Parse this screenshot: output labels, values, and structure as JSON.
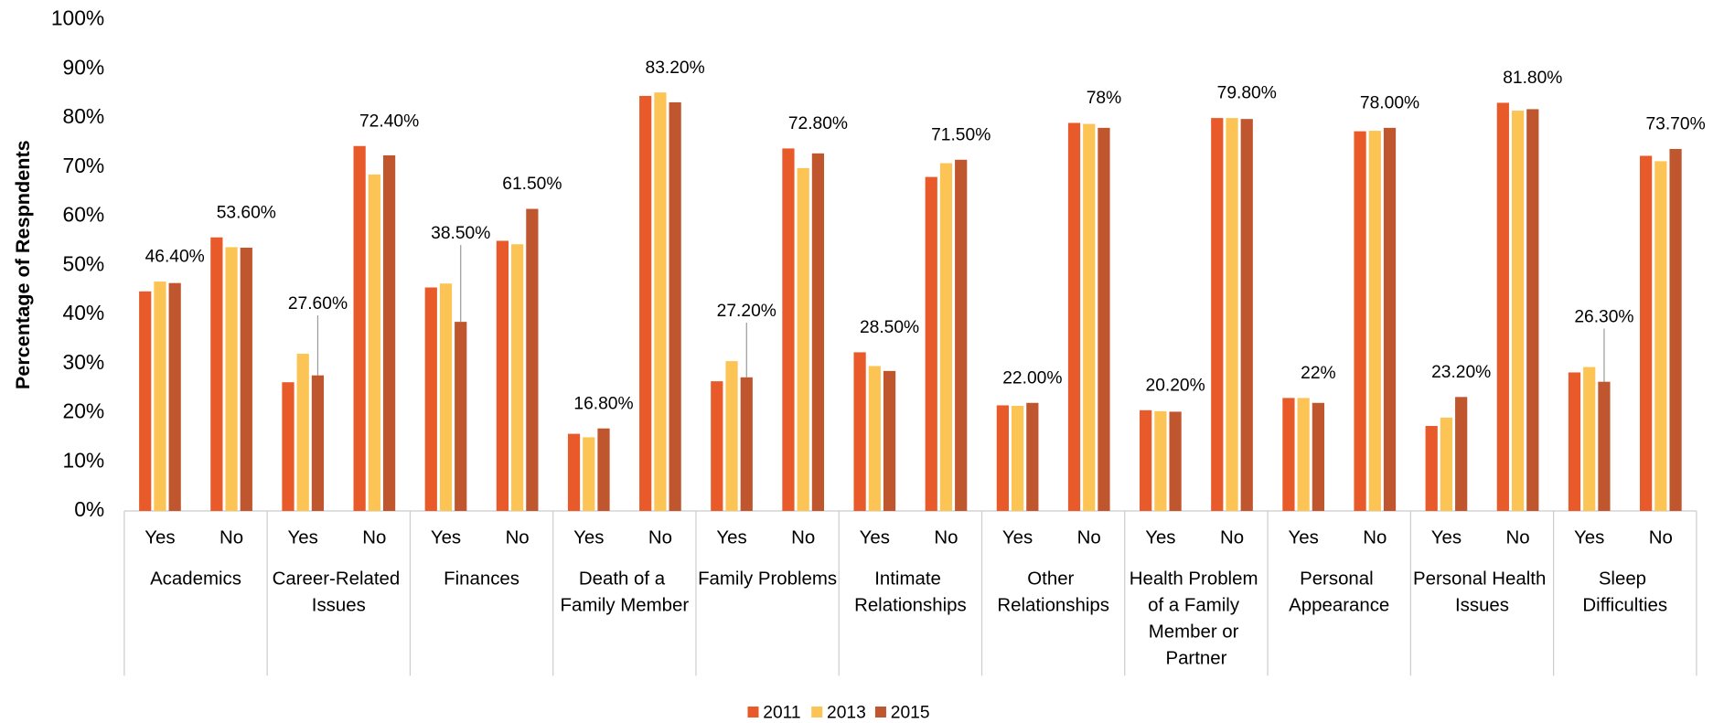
{
  "chart_data": {
    "type": "bar",
    "y_axis_label": "Percentage of Respndents",
    "categories": [
      "Yes",
      "No",
      "Yes",
      "No",
      "Yes",
      "No",
      "Yes",
      "No",
      "Yes",
      "No",
      "Yes",
      "No",
      "Yes",
      "No",
      "Yes",
      "No",
      "Yes",
      "No",
      "Yes",
      "No",
      "Yes",
      "No"
    ],
    "groups": [
      "Academics",
      "Career-Related Issues",
      "Finances",
      "Death of a Family Member",
      "Family Problems",
      "Intimate Relationships",
      "Other Relationships",
      "Health Problem of a Family Member or Partner",
      "Personal Appearance",
      "Personal Health Issues",
      "Sleep Difficulties"
    ],
    "series": [
      {
        "name": "2011",
        "color": "#e85a2a",
        "values": [
          44.7,
          55.7,
          26.2,
          74.3,
          45.5,
          55,
          15.7,
          84.5,
          26.4,
          73.8,
          32.3,
          68,
          21.5,
          79,
          20.5,
          80,
          23,
          77.3,
          17.3,
          83.1,
          28.2,
          72.3
        ]
      },
      {
        "name": "2013",
        "color": "#fcc455",
        "values": [
          46.7,
          53.7,
          32,
          68.5,
          46.3,
          54.3,
          15,
          85.2,
          30.5,
          69.8,
          29.5,
          70.8,
          21.4,
          78.8,
          20.3,
          80,
          23,
          77.4,
          19,
          81.5,
          29.3,
          71.2
        ]
      },
      {
        "name": "2015",
        "color": "#c0562e",
        "values": [
          46.4,
          53.6,
          27.6,
          72.4,
          38.5,
          61.5,
          16.8,
          83.2,
          27.2,
          72.8,
          28.5,
          71.5,
          22,
          78,
          20.2,
          79.8,
          22,
          78,
          23.2,
          81.8,
          26.3,
          73.7
        ],
        "value_labels": [
          "46.40%",
          "53.60%",
          "27.60%",
          "72.40%",
          "38.50%",
          "61.50%",
          "16.80%",
          "83.20%",
          "27.20%",
          "72.80%",
          "28.50%",
          "71.50%",
          "22.00%",
          "78%",
          "20.20%",
          "79.80%",
          "22%",
          "78.00%",
          "23.20%",
          "81.80%",
          "26.30%",
          "73.70%"
        ]
      }
    ],
    "ylim": [
      0,
      100
    ],
    "yticks": [
      {
        "value": 0,
        "label": "0%"
      },
      {
        "value": 10,
        "label": "10%"
      },
      {
        "value": 20,
        "label": "20%"
      },
      {
        "value": 30,
        "label": "30%"
      },
      {
        "value": 40,
        "label": "40%"
      },
      {
        "value": 50,
        "label": "50%"
      },
      {
        "value": 60,
        "label": "60%"
      },
      {
        "value": 70,
        "label": "70%"
      },
      {
        "value": 80,
        "label": "80%"
      },
      {
        "value": 90,
        "label": "90%"
      },
      {
        "value": 100,
        "label": "100%"
      }
    ],
    "grid": false,
    "legend": "bottom"
  }
}
